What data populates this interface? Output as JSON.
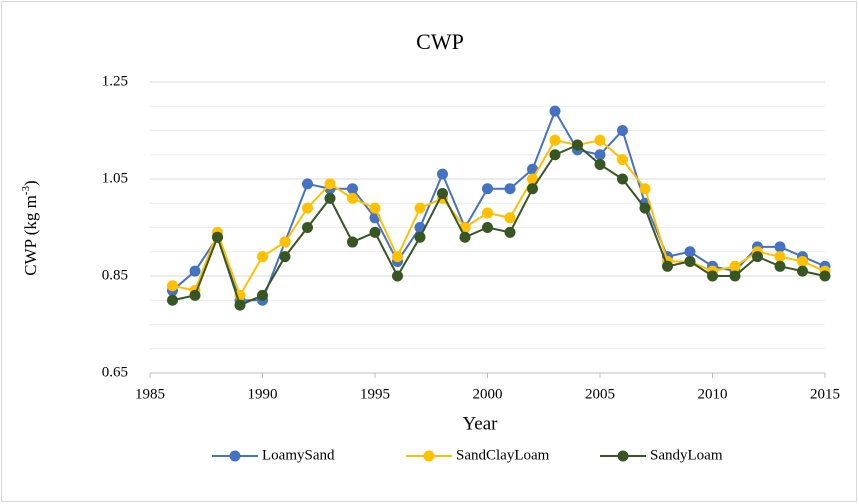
{
  "chart_data": {
    "type": "line",
    "title": "CWP",
    "x_label": "Year",
    "y_label": [
      "CWP (kg m",
      "-3",
      ")"
    ],
    "x": [
      1986,
      1987,
      1988,
      1989,
      1990,
      1991,
      1992,
      1993,
      1994,
      1995,
      1996,
      1997,
      1998,
      1999,
      2000,
      2001,
      2002,
      2003,
      2004,
      2005,
      2006,
      2007,
      2008,
      2009,
      2010,
      2011,
      2012,
      2013,
      2014,
      2015
    ],
    "series": [
      {
        "name": "LoamySand",
        "color": "#4472c4",
        "values": [
          0.82,
          0.86,
          0.93,
          0.8,
          0.8,
          0.92,
          1.04,
          1.03,
          1.03,
          0.97,
          0.88,
          0.95,
          1.06,
          0.95,
          1.03,
          1.03,
          1.07,
          1.19,
          1.11,
          1.1,
          1.15,
          1.0,
          0.89,
          0.9,
          0.87,
          0.86,
          0.91,
          0.91,
          0.89,
          0.87
        ]
      },
      {
        "name": "SandClayLoam",
        "color": "#ffc000",
        "values": [
          0.83,
          0.82,
          0.94,
          0.81,
          0.89,
          0.92,
          0.99,
          1.04,
          1.01,
          0.99,
          0.89,
          0.99,
          1.01,
          0.95,
          0.98,
          0.97,
          1.05,
          1.13,
          1.12,
          1.13,
          1.09,
          1.03,
          0.88,
          0.88,
          0.86,
          0.87,
          0.9,
          0.89,
          0.88,
          0.86
        ]
      },
      {
        "name": "SandyLoam",
        "color": "#375623",
        "values": [
          0.8,
          0.81,
          0.93,
          0.79,
          0.81,
          0.89,
          0.95,
          1.01,
          0.92,
          0.94,
          0.85,
          0.93,
          1.02,
          0.93,
          0.95,
          0.94,
          1.03,
          1.1,
          1.12,
          1.08,
          1.05,
          0.99,
          0.87,
          0.88,
          0.85,
          0.85,
          0.89,
          0.87,
          0.86,
          0.85
        ]
      }
    ],
    "xlim": [
      1985,
      2015
    ],
    "xticks": [
      1985,
      1990,
      1995,
      2000,
      2005,
      2010,
      2015
    ],
    "ylim": [
      0.65,
      1.25
    ],
    "yticks": [
      0.65,
      0.85,
      1.05,
      1.25
    ],
    "minor_yticks": [
      0.7,
      0.75,
      0.8,
      0.9,
      0.95,
      1.0,
      1.1,
      1.15,
      1.2
    ],
    "grid": true,
    "legend": "bottom"
  }
}
